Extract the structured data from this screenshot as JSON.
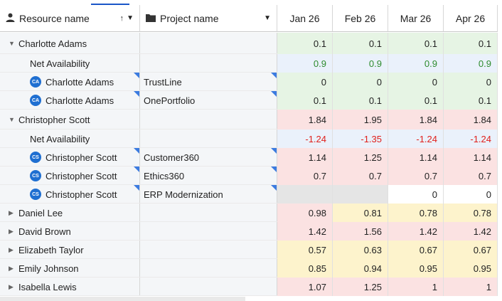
{
  "header": {
    "resource_label": "Resource name",
    "project_label": "Project name",
    "months": [
      "Jan 26",
      "Feb 26",
      "Mar 26",
      "Apr 26"
    ]
  },
  "rows": [
    {
      "kind": "group",
      "expanded": true,
      "name": "Charlotte Adams",
      "project": "",
      "values": [
        "0.1",
        "0.1",
        "0.1",
        "0.1"
      ],
      "bg": [
        "green",
        "green",
        "green",
        "green"
      ]
    },
    {
      "kind": "net",
      "name": "Net Availability",
      "project": "",
      "values": [
        "0.9",
        "0.9",
        "0.9",
        "0.9"
      ],
      "bg": [
        "blue",
        "blue",
        "blue",
        "blue"
      ],
      "sign": "pos"
    },
    {
      "kind": "assign",
      "initials": "CA",
      "name": "Charlotte Adams",
      "project": "TrustLine",
      "values": [
        "0",
        "0",
        "0",
        "0"
      ],
      "bg": [
        "green",
        "green",
        "green",
        "green"
      ]
    },
    {
      "kind": "assign",
      "initials": "CA",
      "name": "Charlotte Adams",
      "project": "OnePortfolio",
      "values": [
        "0.1",
        "0.1",
        "0.1",
        "0.1"
      ],
      "bg": [
        "green",
        "green",
        "green",
        "green"
      ]
    },
    {
      "kind": "group",
      "expanded": true,
      "name": "Christopher Scott",
      "project": "",
      "values": [
        "1.84",
        "1.95",
        "1.84",
        "1.84"
      ],
      "bg": [
        "red",
        "red",
        "red",
        "red"
      ]
    },
    {
      "kind": "net",
      "name": "Net Availability",
      "project": "",
      "values": [
        "-1.24",
        "-1.35",
        "-1.24",
        "-1.24"
      ],
      "bg": [
        "blue",
        "blue",
        "blue",
        "blue"
      ],
      "sign": "neg"
    },
    {
      "kind": "assign",
      "initials": "CS",
      "name": "Christopher Scott",
      "project": "Customer360",
      "values": [
        "1.14",
        "1.25",
        "1.14",
        "1.14"
      ],
      "bg": [
        "red",
        "red",
        "red",
        "red"
      ]
    },
    {
      "kind": "assign",
      "initials": "CS",
      "name": "Christopher Scott",
      "project": "Ethics360",
      "values": [
        "0.7",
        "0.7",
        "0.7",
        "0.7"
      ],
      "bg": [
        "red",
        "red",
        "red",
        "red"
      ]
    },
    {
      "kind": "assign",
      "initials": "CS",
      "name": "Christopher Scott",
      "project": "ERP Modernization",
      "values": [
        "",
        "",
        "0",
        "0"
      ],
      "bg": [
        "gray",
        "gray",
        "white",
        "white"
      ]
    },
    {
      "kind": "group",
      "expanded": false,
      "name": "Daniel Lee",
      "project": "",
      "values": [
        "0.98",
        "0.81",
        "0.78",
        "0.78"
      ],
      "bg": [
        "red",
        "yellow",
        "yellow",
        "yellow"
      ]
    },
    {
      "kind": "group",
      "expanded": false,
      "name": "David Brown",
      "project": "",
      "values": [
        "1.42",
        "1.56",
        "1.42",
        "1.42"
      ],
      "bg": [
        "red",
        "red",
        "red",
        "red"
      ]
    },
    {
      "kind": "group",
      "expanded": false,
      "name": "Elizabeth Taylor",
      "project": "",
      "values": [
        "0.57",
        "0.63",
        "0.67",
        "0.67"
      ],
      "bg": [
        "yellow",
        "yellow",
        "yellow",
        "yellow"
      ]
    },
    {
      "kind": "group",
      "expanded": false,
      "name": "Emily Johnson",
      "project": "",
      "values": [
        "0.85",
        "0.94",
        "0.95",
        "0.95"
      ],
      "bg": [
        "yellow",
        "yellow",
        "yellow",
        "yellow"
      ]
    },
    {
      "kind": "group",
      "expanded": false,
      "name": "Isabella Lewis",
      "project": "",
      "values": [
        "1.07",
        "1.25",
        "1",
        "1"
      ],
      "bg": [
        "red",
        "red",
        "red",
        "red"
      ]
    }
  ],
  "colors": {
    "accent": "#1a56c8",
    "avatar": "#1f6fd1",
    "positive": "#2e8b2e",
    "negative": "#e0201c"
  }
}
